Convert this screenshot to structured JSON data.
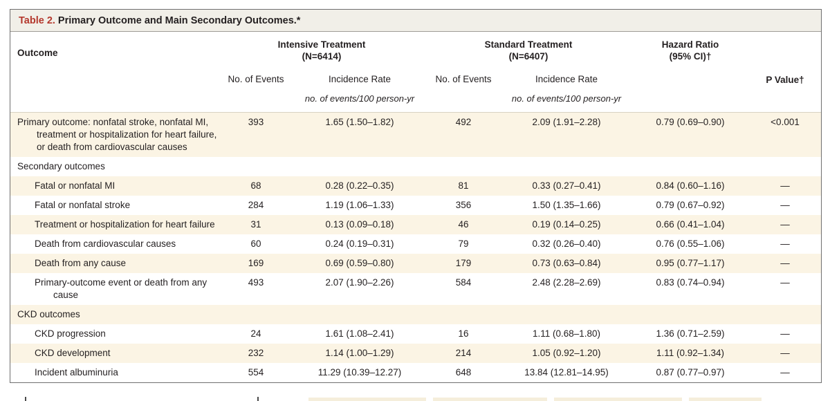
{
  "colors": {
    "accent_red": "#b4382d",
    "row_shade": "#fbf4e4",
    "title_bar_bg": "#f1efe8",
    "border": "#6e6e6e",
    "text": "#231f20"
  },
  "table": {
    "title_label": "Table 2.",
    "title_text": "Primary Outcome and Main Secondary Outcomes.*",
    "header": {
      "outcome": "Outcome",
      "group1_line1": "Intensive Treatment",
      "group1_line2": "(N=6414)",
      "group2_line1": "Standard Treatment",
      "group2_line2": "(N=6407)",
      "hr_line1": "Hazard Ratio",
      "hr_line2": "(95% CI)†",
      "pvalue": "P Value†",
      "no_of_events": "No. of Events",
      "incidence_rate": "Incidence Rate",
      "units": "no. of events/100 person-yr"
    },
    "rows": [
      {
        "type": "data",
        "level": 0,
        "shaded": true,
        "label": "Primary outcome: nonfatal stroke, nonfatal MI, treatment or hospitalization for heart failure, or death from cardiovascular causes",
        "cells": [
          "393",
          "1.65 (1.50–1.82)",
          "492",
          "2.09 (1.91–2.28)",
          "0.79 (0.69–0.90)",
          "<0.001"
        ]
      },
      {
        "type": "section",
        "level": 0,
        "shaded": false,
        "label": "Secondary outcomes",
        "cells": [
          "",
          "",
          "",
          "",
          "",
          ""
        ]
      },
      {
        "type": "data",
        "level": 1,
        "shaded": true,
        "label": "Fatal or nonfatal MI",
        "cells": [
          "68",
          "0.28 (0.22–0.35)",
          "81",
          "0.33 (0.27–0.41)",
          "0.84 (0.60–1.16)",
          "—"
        ]
      },
      {
        "type": "data",
        "level": 1,
        "shaded": false,
        "label": "Fatal or nonfatal stroke",
        "cells": [
          "284",
          "1.19 (1.06–1.33)",
          "356",
          "1.50 (1.35–1.66)",
          "0.79 (0.67–0.92)",
          "—"
        ]
      },
      {
        "type": "data",
        "level": 1,
        "shaded": true,
        "label": "Treatment or hospitalization for heart failure",
        "cells": [
          "31",
          "0.13 (0.09–0.18)",
          "46",
          "0.19 (0.14–0.25)",
          "0.66 (0.41–1.04)",
          "—"
        ]
      },
      {
        "type": "data",
        "level": 1,
        "shaded": false,
        "label": "Death from cardiovascular causes",
        "cells": [
          "60",
          "0.24 (0.19–0.31)",
          "79",
          "0.32 (0.26–0.40)",
          "0.76 (0.55–1.06)",
          "—"
        ]
      },
      {
        "type": "data",
        "level": 1,
        "shaded": true,
        "label": "Death from any cause",
        "cells": [
          "169",
          "0.69 (0.59–0.80)",
          "179",
          "0.73 (0.63–0.84)",
          "0.95 (0.77–1.17)",
          "—"
        ]
      },
      {
        "type": "data",
        "level": 1,
        "shaded": false,
        "label": "Primary-outcome event or death from any cause",
        "cells": [
          "493",
          "2.07 (1.90–2.26)",
          "584",
          "2.48 (2.28–2.69)",
          "0.83 (0.74–0.94)",
          "—"
        ]
      },
      {
        "type": "section",
        "level": 0,
        "shaded": true,
        "label": "CKD outcomes",
        "cells": [
          "",
          "",
          "",
          "",
          "",
          ""
        ]
      },
      {
        "type": "data",
        "level": 1,
        "shaded": false,
        "label": "CKD progression",
        "cells": [
          "24",
          "1.61 (1.08–2.41)",
          "16",
          "1.11 (0.68–1.80)",
          "1.36 (0.71–2.59)",
          "—"
        ]
      },
      {
        "type": "data",
        "level": 1,
        "shaded": true,
        "label": "CKD development",
        "cells": [
          "232",
          "1.14 (1.00–1.29)",
          "214",
          "1.05 (0.92–1.20)",
          "1.11 (0.92–1.34)",
          "—"
        ]
      },
      {
        "type": "data",
        "level": 1,
        "shaded": false,
        "label": "Incident albuminuria",
        "cells": [
          "554",
          "11.29 (10.39–12.27)",
          "648",
          "13.84 (12.81–14.95)",
          "0.87 (0.77–0.97)",
          "—"
        ]
      }
    ]
  }
}
